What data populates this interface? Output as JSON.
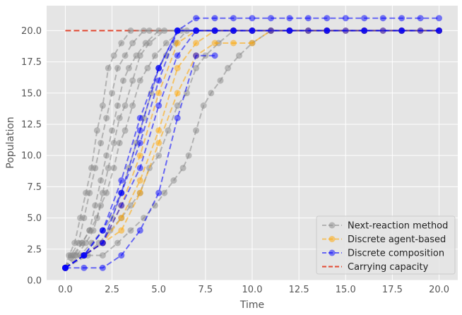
{
  "chart_data": {
    "type": "line",
    "title": "",
    "xlabel": "Time",
    "ylabel": "Population",
    "xlim": [
      -1,
      21
    ],
    "ylim": [
      0,
      22
    ],
    "xticks": [
      0.0,
      2.5,
      5.0,
      7.5,
      10.0,
      12.5,
      15.0,
      17.5,
      20.0
    ],
    "yticks": [
      0.0,
      2.5,
      5.0,
      7.5,
      10.0,
      12.5,
      15.0,
      17.5,
      20.0
    ],
    "xtick_labels": [
      "0.0",
      "2.5",
      "5.0",
      "7.5",
      "10.0",
      "12.5",
      "15.0",
      "17.5",
      "20.0"
    ],
    "ytick_labels": [
      "0.0",
      "2.5",
      "5.0",
      "7.5",
      "10.0",
      "12.5",
      "15.0",
      "17.5",
      "20.0"
    ],
    "grid": true,
    "legend_position": "bottom-right",
    "legend": [
      {
        "label": "Next-reaction method",
        "color": "#888888",
        "style": "dashed-marker"
      },
      {
        "label": "Discrete agent-based",
        "color": "#ffa500",
        "style": "dashed-marker"
      },
      {
        "label": "Discrete composition",
        "color": "#0000ff",
        "style": "dashed-marker"
      },
      {
        "label": "Carrying capacity",
        "color": "#e24a33",
        "style": "dashed"
      }
    ],
    "carrying_capacity": {
      "name": "Carrying capacity",
      "color": "#e24a33",
      "x": [
        0,
        20
      ],
      "y": [
        20,
        20
      ]
    },
    "series": [
      {
        "name": "Next-reaction method",
        "color": "#888888",
        "points": [
          [
            0,
            1
          ],
          [
            0.2,
            2
          ],
          [
            0.5,
            3
          ],
          [
            0.8,
            5
          ],
          [
            1.1,
            7
          ],
          [
            1.4,
            9
          ],
          [
            1.7,
            12
          ],
          [
            2.0,
            14
          ],
          [
            2.3,
            17
          ],
          [
            2.6,
            18
          ],
          [
            3.0,
            19
          ],
          [
            3.5,
            20
          ],
          [
            4.5,
            20
          ],
          [
            6,
            20
          ],
          [
            8,
            20
          ],
          [
            12,
            20
          ],
          [
            16,
            20
          ],
          [
            20,
            20
          ]
        ]
      },
      {
        "name": "Next-reaction method",
        "color": "#888888",
        "points": [
          [
            0,
            1
          ],
          [
            0.3,
            2
          ],
          [
            0.7,
            3
          ],
          [
            1.0,
            5
          ],
          [
            1.3,
            7
          ],
          [
            1.6,
            9
          ],
          [
            1.9,
            11
          ],
          [
            2.2,
            13
          ],
          [
            2.5,
            15
          ],
          [
            2.8,
            17
          ],
          [
            3.2,
            18
          ],
          [
            3.6,
            19
          ],
          [
            4.2,
            20
          ],
          [
            6,
            20
          ],
          [
            9,
            20
          ],
          [
            14,
            20
          ],
          [
            20,
            20
          ]
        ]
      },
      {
        "name": "Next-reaction method",
        "color": "#888888",
        "points": [
          [
            0,
            1
          ],
          [
            0.5,
            2
          ],
          [
            0.9,
            3
          ],
          [
            1.3,
            4
          ],
          [
            1.6,
            6
          ],
          [
            1.9,
            8
          ],
          [
            2.2,
            10
          ],
          [
            2.5,
            12
          ],
          [
            2.8,
            14
          ],
          [
            3.1,
            16
          ],
          [
            3.4,
            17
          ],
          [
            3.8,
            18
          ],
          [
            4.3,
            19
          ],
          [
            5.0,
            20
          ],
          [
            7,
            20
          ],
          [
            11,
            20
          ],
          [
            20,
            20
          ]
        ]
      },
      {
        "name": "Next-reaction method",
        "color": "#888888",
        "points": [
          [
            0,
            1
          ],
          [
            0.4,
            2
          ],
          [
            0.9,
            3
          ],
          [
            1.3,
            4
          ],
          [
            1.7,
            5
          ],
          [
            2.0,
            7
          ],
          [
            2.3,
            9
          ],
          [
            2.6,
            11
          ],
          [
            2.9,
            13
          ],
          [
            3.2,
            14
          ],
          [
            3.6,
            16
          ],
          [
            4.0,
            18
          ],
          [
            4.5,
            19
          ],
          [
            5.3,
            20
          ],
          [
            8,
            20
          ],
          [
            13,
            20
          ],
          [
            20,
            20
          ]
        ]
      },
      {
        "name": "Next-reaction method",
        "color": "#888888",
        "points": [
          [
            0,
            1
          ],
          [
            0.6,
            2
          ],
          [
            1.1,
            3
          ],
          [
            1.5,
            4
          ],
          [
            1.9,
            6
          ],
          [
            2.2,
            7
          ],
          [
            2.6,
            9
          ],
          [
            2.9,
            11
          ],
          [
            3.2,
            12
          ],
          [
            3.6,
            14
          ],
          [
            4.0,
            16
          ],
          [
            4.4,
            17
          ],
          [
            4.8,
            18
          ],
          [
            5.4,
            19
          ],
          [
            6.2,
            20
          ],
          [
            9,
            20
          ],
          [
            20,
            20
          ]
        ]
      },
      {
        "name": "Next-reaction method",
        "color": "#888888",
        "points": [
          [
            0,
            1
          ],
          [
            0.8,
            2
          ],
          [
            1.4,
            3
          ],
          [
            2.0,
            4
          ],
          [
            2.5,
            5
          ],
          [
            3.0,
            7
          ],
          [
            3.4,
            9
          ],
          [
            3.8,
            11
          ],
          [
            4.2,
            13
          ],
          [
            4.6,
            15
          ],
          [
            5.0,
            17
          ],
          [
            5.4,
            18
          ],
          [
            5.9,
            19
          ],
          [
            6.5,
            20
          ],
          [
            10,
            20
          ],
          [
            20,
            20
          ]
        ]
      },
      {
        "name": "Next-reaction method",
        "color": "#888888",
        "points": [
          [
            0,
            1
          ],
          [
            1.0,
            2
          ],
          [
            1.8,
            3
          ],
          [
            2.4,
            4
          ],
          [
            3.0,
            5
          ],
          [
            3.5,
            6
          ],
          [
            4.0,
            7
          ],
          [
            4.5,
            9
          ],
          [
            5.0,
            10
          ],
          [
            5.5,
            12
          ],
          [
            6.0,
            14
          ],
          [
            6.5,
            15
          ],
          [
            7.0,
            17
          ],
          [
            7.5,
            18
          ],
          [
            8.2,
            19
          ],
          [
            9.0,
            20
          ],
          [
            14,
            20
          ],
          [
            20,
            20
          ]
        ]
      },
      {
        "name": "Next-reaction method",
        "color": "#888888",
        "points": [
          [
            0,
            1
          ],
          [
            1.2,
            2
          ],
          [
            2.0,
            2
          ],
          [
            2.8,
            3
          ],
          [
            3.5,
            4
          ],
          [
            4.2,
            5
          ],
          [
            4.8,
            6
          ],
          [
            5.3,
            7
          ],
          [
            5.8,
            8
          ],
          [
            6.3,
            9
          ],
          [
            6.6,
            10
          ],
          [
            7.0,
            12
          ],
          [
            7.4,
            14
          ],
          [
            7.8,
            15
          ],
          [
            8.3,
            16
          ],
          [
            8.7,
            17
          ],
          [
            9.3,
            18
          ],
          [
            10.0,
            19
          ],
          [
            11.0,
            20
          ],
          [
            20,
            20
          ]
        ]
      },
      {
        "name": "Discrete agent-based",
        "color": "#ffa500",
        "points": [
          [
            0,
            1
          ],
          [
            1,
            2
          ],
          [
            2,
            3
          ],
          [
            3,
            4
          ],
          [
            4,
            7
          ],
          [
            5,
            11
          ],
          [
            6,
            15
          ],
          [
            7,
            18
          ],
          [
            8,
            19
          ],
          [
            9,
            19
          ],
          [
            10,
            19
          ],
          [
            11,
            20
          ],
          [
            12,
            20
          ],
          [
            13,
            20
          ],
          [
            14,
            20
          ],
          [
            15,
            20
          ],
          [
            16,
            20
          ],
          [
            17,
            20
          ],
          [
            18,
            20
          ],
          [
            19,
            20
          ],
          [
            20,
            20
          ]
        ]
      },
      {
        "name": "Discrete agent-based",
        "color": "#ffa500",
        "points": [
          [
            0,
            1
          ],
          [
            1,
            2
          ],
          [
            2,
            3
          ],
          [
            3,
            6
          ],
          [
            4,
            10
          ],
          [
            5,
            15
          ],
          [
            6,
            19
          ],
          [
            7,
            20
          ],
          [
            8,
            20
          ],
          [
            9,
            20
          ],
          [
            10,
            20
          ],
          [
            12,
            20
          ],
          [
            14,
            20
          ],
          [
            16,
            20
          ],
          [
            18,
            20
          ],
          [
            20,
            20
          ]
        ]
      },
      {
        "name": "Discrete agent-based",
        "color": "#ffa500",
        "points": [
          [
            0,
            1
          ],
          [
            1,
            2
          ],
          [
            2,
            3
          ],
          [
            3,
            5
          ],
          [
            4,
            8
          ],
          [
            5,
            12
          ],
          [
            6,
            17
          ],
          [
            7,
            19
          ],
          [
            8,
            20
          ],
          [
            9,
            20
          ],
          [
            10,
            20
          ],
          [
            12,
            20
          ],
          [
            14,
            20
          ],
          [
            16,
            20
          ],
          [
            18,
            20
          ],
          [
            20,
            20
          ]
        ]
      },
      {
        "name": "Discrete composition",
        "color": "#0000ff",
        "points": [
          [
            0,
            1
          ],
          [
            1,
            2
          ],
          [
            2,
            4
          ],
          [
            3,
            8
          ],
          [
            4,
            13
          ],
          [
            5,
            17
          ],
          [
            6,
            20
          ],
          [
            7,
            20
          ],
          [
            8,
            20
          ],
          [
            9,
            20
          ],
          [
            10,
            20
          ],
          [
            11,
            20
          ],
          [
            12,
            20
          ],
          [
            13,
            20
          ],
          [
            14,
            20
          ],
          [
            15,
            20
          ],
          [
            16,
            20
          ],
          [
            17,
            20
          ],
          [
            18,
            20
          ],
          [
            19,
            20
          ],
          [
            20,
            20
          ]
        ]
      },
      {
        "name": "Discrete composition",
        "color": "#0000ff",
        "points": [
          [
            0,
            1
          ],
          [
            1,
            2
          ],
          [
            2,
            4
          ],
          [
            3,
            7
          ],
          [
            4,
            11
          ],
          [
            5,
            16
          ],
          [
            6,
            20
          ],
          [
            7,
            21
          ],
          [
            8,
            21
          ],
          [
            9,
            21
          ],
          [
            10,
            21
          ],
          [
            11,
            21
          ],
          [
            12,
            21
          ],
          [
            13,
            21
          ],
          [
            14,
            21
          ],
          [
            15,
            21
          ],
          [
            16,
            21
          ],
          [
            17,
            21
          ],
          [
            18,
            21
          ],
          [
            19,
            21
          ],
          [
            20,
            21
          ]
        ]
      },
      {
        "name": "Discrete composition",
        "color": "#0000ff",
        "points": [
          [
            0,
            1
          ],
          [
            1,
            2
          ],
          [
            2,
            3
          ],
          [
            3,
            6
          ],
          [
            4,
            9
          ],
          [
            5,
            14
          ],
          [
            6,
            18
          ],
          [
            7,
            20
          ],
          [
            8,
            20
          ],
          [
            9,
            20
          ],
          [
            10,
            20
          ],
          [
            12,
            20
          ],
          [
            14,
            20
          ],
          [
            16,
            20
          ],
          [
            18,
            20
          ],
          [
            20,
            20
          ]
        ]
      },
      {
        "name": "Discrete composition",
        "color": "#0000ff",
        "points": [
          [
            0,
            1
          ],
          [
            1,
            1
          ],
          [
            2,
            1
          ],
          [
            3,
            2
          ],
          [
            4,
            4
          ],
          [
            5,
            7
          ],
          [
            6,
            13
          ],
          [
            7,
            18
          ],
          [
            8,
            18
          ]
        ]
      },
      {
        "name": "Discrete composition",
        "color": "#0000ff",
        "points": [
          [
            0,
            1
          ],
          [
            1,
            2
          ],
          [
            2,
            3
          ],
          [
            3,
            7
          ],
          [
            4,
            12
          ],
          [
            5,
            17
          ],
          [
            6,
            20
          ],
          [
            7,
            20
          ],
          [
            8,
            20
          ],
          [
            9,
            20
          ],
          [
            10,
            20
          ],
          [
            12,
            20
          ],
          [
            14,
            20
          ],
          [
            16,
            20
          ],
          [
            18,
            20
          ],
          [
            20,
            20
          ]
        ]
      }
    ]
  }
}
